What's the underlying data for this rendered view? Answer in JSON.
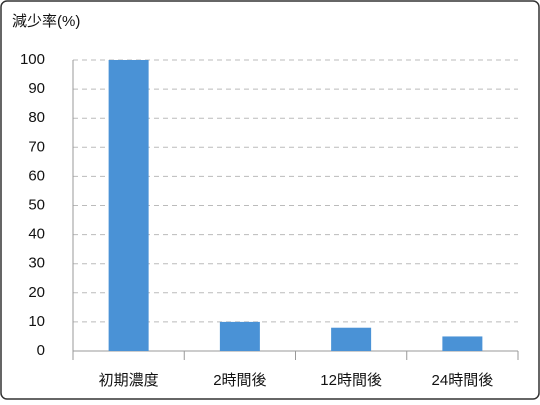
{
  "chart_data": {
    "type": "bar",
    "title": "減少率(%)",
    "categories": [
      "初期濃度",
      "2時間後",
      "12時間後",
      "24時間後"
    ],
    "values": [
      100,
      10,
      8,
      5
    ],
    "color": "#4a92d6",
    "ylim": [
      0,
      100
    ],
    "yticks": [
      0,
      10,
      20,
      30,
      40,
      50,
      60,
      70,
      80,
      90,
      100
    ],
    "grid": true
  }
}
